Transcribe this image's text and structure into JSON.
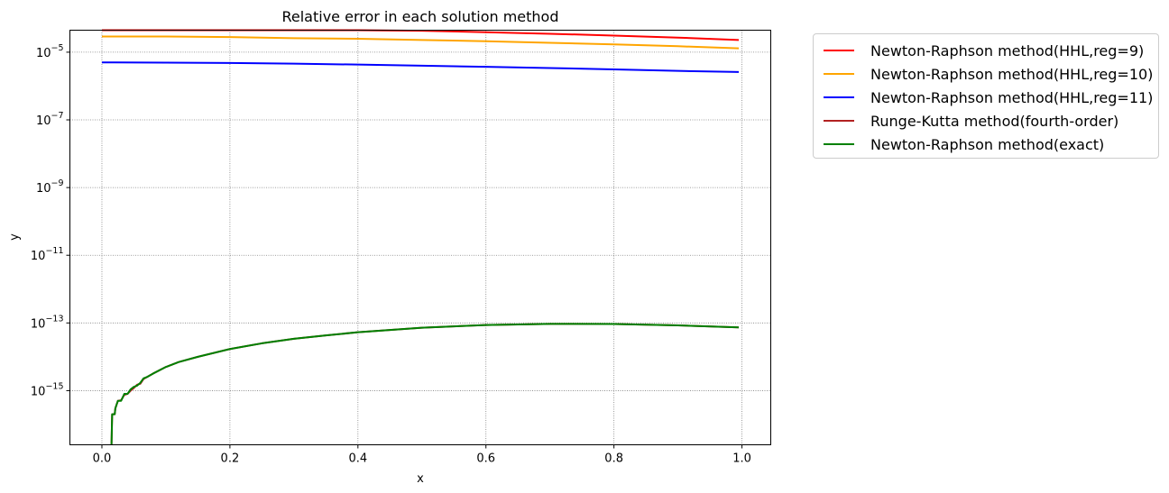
{
  "chart_data": {
    "type": "line",
    "title": "Relative error in each solution method",
    "xlabel": "x",
    "ylabel": "y",
    "xlim": [
      -0.05,
      1.045
    ],
    "ylim_log10": [
      -16.6,
      -4.35
    ],
    "yscale": "log",
    "grid": true,
    "legend_position": "outside-right",
    "x_ticks": [
      0.0,
      0.2,
      0.4,
      0.6,
      0.8,
      1.0
    ],
    "x_tick_labels": [
      "0.0",
      "0.2",
      "0.4",
      "0.6",
      "0.8",
      "1.0"
    ],
    "y_ticks_log10": [
      -15,
      -13,
      -11,
      -9,
      -7,
      -5
    ],
    "y_tick_labels": [
      "10",
      "10",
      "10",
      "10",
      "10",
      "10"
    ],
    "y_tick_exponents": [
      "−15",
      "−13",
      "−11",
      "−9",
      "−7",
      "−5"
    ],
    "series": [
      {
        "name": "Newton-Raphson method(HHL,reg=9)",
        "color": "#ff0000",
        "x": [
          0.0,
          0.1,
          0.2,
          0.3,
          0.4,
          0.5,
          0.6,
          0.7,
          0.8,
          0.9,
          0.995
        ],
        "y": [
          5.3e-05,
          5.3e-05,
          5.1e-05,
          4.9e-05,
          4.6e-05,
          4.3e-05,
          3.9e-05,
          3.5e-05,
          3.1e-05,
          2.7e-05,
          2.3e-05
        ]
      },
      {
        "name": "Newton-Raphson method(HHL,reg=10)",
        "color": "#ffa500",
        "x": [
          0.0,
          0.1,
          0.2,
          0.3,
          0.4,
          0.5,
          0.6,
          0.7,
          0.8,
          0.9,
          0.995
        ],
        "y": [
          2.9e-05,
          2.9e-05,
          2.8e-05,
          2.6e-05,
          2.5e-05,
          2.3e-05,
          2.1e-05,
          1.9e-05,
          1.7e-05,
          1.5e-05,
          1.3e-05
        ]
      },
      {
        "name": "Newton-Raphson method(HHL,reg=11)",
        "color": "#0000ff",
        "x": [
          0.0,
          0.1,
          0.2,
          0.3,
          0.4,
          0.5,
          0.6,
          0.7,
          0.8,
          0.9,
          0.995
        ],
        "y": [
          5e-06,
          4.9e-06,
          4.8e-06,
          4.6e-06,
          4.3e-06,
          4e-06,
          3.7e-06,
          3.4e-06,
          3.1e-06,
          2.8e-06,
          2.6e-06
        ]
      },
      {
        "name": "Runge-Kutta method(fourth-order)",
        "color": "#b22222",
        "x": [
          0.015,
          0.016,
          0.02,
          0.021,
          0.025,
          0.03,
          0.035,
          0.04,
          0.045,
          0.05,
          0.055,
          0.06,
          0.065,
          0.07,
          0.08,
          0.1,
          0.12,
          0.15,
          0.2,
          0.25,
          0.3,
          0.35,
          0.4,
          0.5,
          0.6,
          0.7,
          0.8,
          0.9,
          0.995
        ],
        "y": [
          2.6e-17,
          2e-16,
          2e-16,
          3e-16,
          5e-16,
          5.2e-16,
          7.5e-16,
          8e-16,
          1e-15,
          1.2e-15,
          1.5e-15,
          1.6e-15,
          2.2e-15,
          2.5e-15,
          3.2e-15,
          5e-15,
          7e-15,
          1e-14,
          1.7e-14,
          2.5e-14,
          3.4e-14,
          4.3e-14,
          5.3e-14,
          7.2e-14,
          8.7e-14,
          9.4e-14,
          9.3e-14,
          8.5e-14,
          7.4e-14
        ]
      },
      {
        "name": "Newton-Raphson method(exact)",
        "color": "#008000",
        "x": [
          0.015,
          0.016,
          0.02,
          0.021,
          0.025,
          0.03,
          0.035,
          0.04,
          0.045,
          0.05,
          0.055,
          0.06,
          0.065,
          0.07,
          0.08,
          0.1,
          0.12,
          0.15,
          0.2,
          0.25,
          0.3,
          0.35,
          0.4,
          0.5,
          0.6,
          0.7,
          0.8,
          0.9,
          0.995
        ],
        "y": [
          2.6e-17,
          2e-16,
          2e-16,
          3e-16,
          5e-16,
          5e-16,
          8e-16,
          8e-16,
          1.1e-15,
          1.3e-15,
          1.4e-15,
          1.7e-15,
          2.3e-15,
          2.5e-15,
          3.2e-15,
          5e-15,
          7e-15,
          1e-14,
          1.7e-14,
          2.5e-14,
          3.4e-14,
          4.3e-14,
          5.3e-14,
          7.2e-14,
          8.7e-14,
          9.4e-14,
          9.3e-14,
          8.5e-14,
          7.4e-14
        ]
      }
    ]
  }
}
